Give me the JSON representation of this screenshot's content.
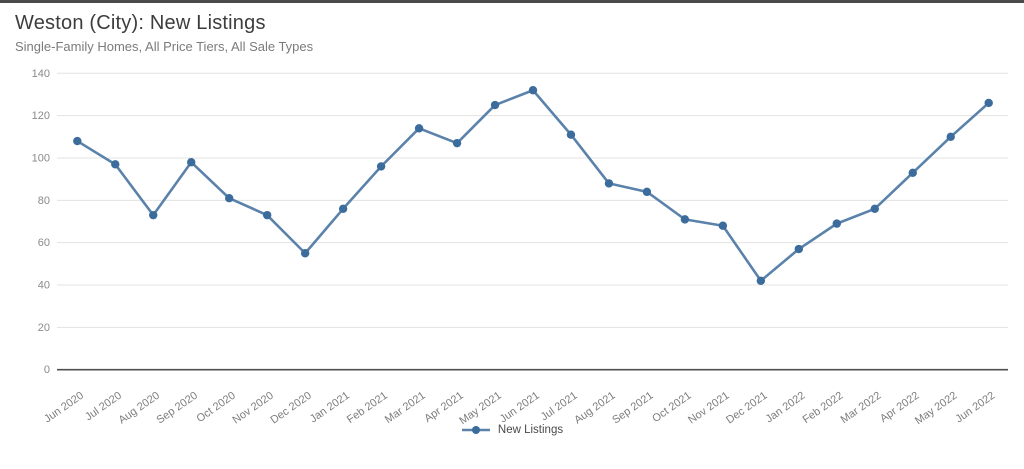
{
  "header": {
    "title": "Weston (City): New Listings",
    "subtitle": "Single-Family Homes, All Price Tiers, All Sale Types"
  },
  "chart_data": {
    "type": "line",
    "title": "Weston (City): New Listings",
    "subtitle": "Single-Family Homes, All Price Tiers, All Sale Types",
    "categories": [
      "Jun 2020",
      "Jul 2020",
      "Aug 2020",
      "Sep 2020",
      "Oct 2020",
      "Nov 2020",
      "Dec 2020",
      "Jan 2021",
      "Feb 2021",
      "Mar 2021",
      "Apr 2021",
      "May 2021",
      "Jun 2021",
      "Jul 2021",
      "Aug 2021",
      "Sep 2021",
      "Oct 2021",
      "Nov 2021",
      "Dec 2021",
      "Jan 2022",
      "Feb 2022",
      "Mar 2022",
      "Apr 2022",
      "May 2022",
      "Jun 2022"
    ],
    "series": [
      {
        "name": "New Listings",
        "values": [
          108,
          97,
          73,
          98,
          81,
          73,
          55,
          76,
          96,
          114,
          107,
          125,
          132,
          111,
          88,
          84,
          71,
          68,
          42,
          57,
          69,
          76,
          93,
          110,
          126
        ]
      }
    ],
    "ylim": [
      0,
      140
    ],
    "yticks": [
      0,
      20,
      40,
      60,
      80,
      100,
      120,
      140
    ],
    "grid": true,
    "legend_position": "bottom",
    "xlabel": "",
    "ylabel": ""
  },
  "legend": {
    "items": [
      {
        "label": "New Listings"
      }
    ]
  },
  "colors": {
    "line": "#5a82aa",
    "marker": "#3c6c9c",
    "grid": "#e3e3e3",
    "axis": "#4f4f4f",
    "tick_label": "#8a8a8a",
    "x_label": "#7d7d7d",
    "title": "#3d3d3d",
    "subtitle": "#7b7b7b",
    "top_border": "#4a4a4a"
  }
}
